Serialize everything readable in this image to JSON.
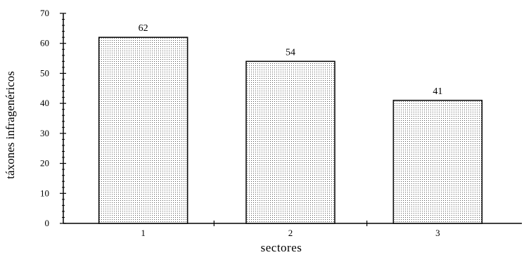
{
  "chart_data": {
    "type": "bar",
    "categories": [
      "1",
      "2",
      "3"
    ],
    "values": [
      62,
      54,
      41
    ],
    "data_labels": [
      "62",
      "54",
      "41"
    ],
    "xlabel": "sectores",
    "ylabel": "táxones infragenéricos",
    "ylim": [
      0,
      70
    ],
    "yticks": [
      "0",
      "10",
      "20",
      "30",
      "40",
      "50",
      "60",
      "70"
    ],
    "grid": false,
    "legend": "none",
    "bar_fill": "stippled"
  }
}
